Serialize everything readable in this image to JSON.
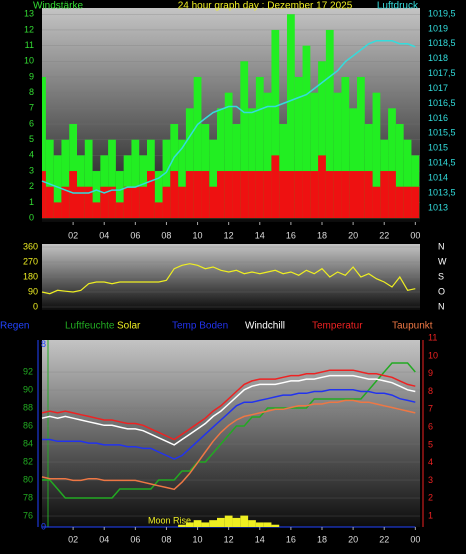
{
  "chart_data": [
    {
      "type": "wind",
      "title": "24 hour graph day : Dezember 17 2025",
      "ylabel": "Windstärke",
      "y2label": "Luftdruck",
      "x": [
        0,
        0.5,
        1,
        1.5,
        2,
        2.5,
        3,
        3.5,
        4,
        4.5,
        5,
        5.5,
        6,
        6.5,
        7,
        7.5,
        8,
        8.5,
        9,
        9.5,
        10,
        10.5,
        11,
        11.5,
        12,
        12.5,
        13,
        13.5,
        14,
        14.5,
        15,
        15.5,
        16,
        16.5,
        17,
        17.5,
        18,
        18.5,
        19,
        19.5,
        20,
        20.5,
        21,
        21.5,
        22,
        22.5,
        23,
        23.5,
        24
      ],
      "xlim": [
        0,
        24.3
      ],
      "xticks": [
        {
          "value": 2,
          "label": "02"
        },
        {
          "value": 4,
          "label": "04"
        },
        {
          "value": 6,
          "label": "06"
        },
        {
          "value": 8,
          "label": "08"
        },
        10,
        12,
        14,
        16,
        18,
        20,
        22,
        {
          "value": 24,
          "label": "00"
        }
      ],
      "ylim": [
        -0.25,
        13.4
      ],
      "yticks": [
        0,
        1,
        2,
        3,
        4,
        5,
        6,
        7,
        8,
        9,
        10,
        11,
        12,
        13
      ],
      "y2lim": [
        1012.53,
        1019.7
      ],
      "y2ticks": [
        1013,
        {
          "value": 1013.5,
          "label": "1013,5"
        },
        1014,
        {
          "value": 1014.5,
          "label": "1014,5"
        },
        1015,
        {
          "value": 1015.5,
          "label": "1015,5"
        },
        1016,
        {
          "value": 1016.5,
          "label": "1016,5"
        },
        1017,
        {
          "value": 1017.5,
          "label": "1017,5"
        },
        1018,
        {
          "value": 1018.5,
          "label": "1018,5"
        },
        1019,
        {
          "value": 1019.5,
          "label": "1019,5"
        }
      ],
      "series": [
        {
          "color": "#22ee22",
          "values": [
            9,
            5,
            4,
            5,
            6,
            4,
            5,
            3,
            4,
            5,
            3,
            4,
            5,
            4,
            5,
            3,
            5,
            6,
            5,
            7,
            9,
            6,
            5,
            7,
            8,
            6,
            10,
            7,
            9,
            8,
            12,
            6,
            13,
            9,
            11,
            8,
            10,
            12,
            8,
            9,
            7,
            9,
            6,
            8,
            5,
            7,
            6,
            5,
            4
          ]
        },
        {
          "color": "#ee1111",
          "values": [
            3,
            2,
            1,
            2,
            3,
            2,
            2,
            1,
            2,
            2,
            1,
            2,
            2,
            2,
            3,
            1,
            2,
            3,
            2,
            3,
            3,
            3,
            2,
            3,
            3,
            3,
            3,
            3,
            3,
            3,
            4,
            3,
            3,
            3,
            3,
            3,
            4,
            3,
            3,
            3,
            3,
            3,
            3,
            2,
            3,
            3,
            2,
            2,
            2
          ]
        },
        {
          "color": "#33dddd",
          "axis": "y2",
          "values": [
            1013.9,
            1013.8,
            1013.7,
            1013.6,
            1013.5,
            1013.5,
            1013.5,
            1013.6,
            1013.5,
            1013.6,
            1013.6,
            1013.7,
            1013.7,
            1013.8,
            1013.9,
            1014.0,
            1014.2,
            1014.7,
            1015.0,
            1015.4,
            1015.8,
            1016.0,
            1016.2,
            1016.3,
            1016.4,
            1016.4,
            1016.2,
            1016.2,
            1016.3,
            1016.4,
            1016.4,
            1016.5,
            1016.6,
            1016.7,
            1016.8,
            1017.0,
            1017.2,
            1017.4,
            1017.6,
            1017.9,
            1018.1,
            1018.3,
            1018.5,
            1018.6,
            1018.6,
            1018.6,
            1018.5,
            1018.5,
            1018.4
          ]
        }
      ]
    },
    {
      "type": "direction",
      "x": [
        0,
        0.5,
        1,
        1.5,
        2,
        2.5,
        3,
        3.5,
        4,
        4.5,
        5,
        5.5,
        6,
        6.5,
        7,
        7.5,
        8,
        8.5,
        9,
        9.5,
        10,
        10.5,
        11,
        11.5,
        12,
        12.5,
        13,
        13.5,
        14,
        14.5,
        15,
        15.5,
        16,
        16.5,
        17,
        17.5,
        18,
        18.5,
        19,
        19.5,
        20,
        20.5,
        21,
        21.5,
        22,
        22.5,
        23,
        23.5,
        24
      ],
      "xlim": [
        0,
        24.3
      ],
      "ylim": [
        -18,
        378
      ],
      "yticks": [
        0,
        90,
        180,
        270,
        360
      ],
      "y2ticks": [
        {
          "value": 360,
          "label": "N"
        },
        {
          "value": 270,
          "label": "W"
        },
        {
          "value": 180,
          "label": "S"
        },
        {
          "value": 90,
          "label": "O"
        },
        {
          "value": 0,
          "label": "N"
        }
      ],
      "series": [
        {
          "color": "#eeee22",
          "values": [
            90,
            80,
            100,
            95,
            90,
            100,
            140,
            150,
            150,
            140,
            150,
            150,
            150,
            150,
            150,
            150,
            160,
            230,
            250,
            260,
            250,
            230,
            240,
            220,
            210,
            220,
            200,
            210,
            200,
            210,
            220,
            200,
            210,
            190,
            220,
            200,
            230,
            180,
            210,
            190,
            240,
            180,
            200,
            170,
            150,
            120,
            180,
            100,
            110
          ]
        }
      ]
    },
    {
      "type": "weather",
      "annotation": "Moon Rise",
      "x": [
        0,
        0.5,
        1,
        1.5,
        2,
        2.5,
        3,
        3.5,
        4,
        4.5,
        5,
        5.5,
        6,
        6.5,
        7,
        7.5,
        8,
        8.5,
        9,
        9.5,
        10,
        10.5,
        11,
        11.5,
        12,
        12.5,
        13,
        13.5,
        14,
        14.5,
        15,
        15.5,
        16,
        16.5,
        17,
        17.5,
        18,
        18.5,
        19,
        19.5,
        20,
        20.5,
        21,
        21.5,
        22,
        22.5,
        23,
        23.5,
        24
      ],
      "xlim": [
        0,
        24.3
      ],
      "xticks": [
        {
          "value": 2,
          "label": "02"
        },
        {
          "value": 4,
          "label": "04"
        },
        {
          "value": 6,
          "label": "06"
        },
        {
          "value": 8,
          "label": "08"
        },
        10,
        12,
        14,
        16,
        18,
        20,
        22,
        {
          "value": 24,
          "label": "00"
        }
      ],
      "ylim": [
        74.78,
        95.56
      ],
      "yticks": [
        76,
        78,
        80,
        82,
        84,
        86,
        88,
        90,
        92
      ],
      "y2lim": [
        0.38,
        10.9
      ],
      "y2ticks": [
        1,
        2,
        3,
        4,
        5,
        6,
        7,
        8,
        9,
        10,
        11
      ],
      "y3lim": [
        0,
        8.2
      ],
      "y3ticks": [
        0,
        8
      ],
      "series": [
        {
          "name": "Regen",
          "color": "#2244ff",
          "axis": "y3",
          "values": [
            0,
            0,
            0,
            0,
            0,
            0,
            0,
            0,
            0,
            0,
            0,
            0,
            0,
            0,
            0,
            0,
            0,
            0,
            0,
            0,
            0,
            0,
            0,
            0,
            0,
            0,
            0,
            0,
            0,
            0,
            0,
            0,
            0,
            0,
            0,
            0,
            0,
            0,
            0,
            0,
            0,
            0,
            0,
            0,
            0,
            0,
            0,
            0,
            0
          ]
        },
        {
          "name": "Luftfeuchte",
          "color": "#22aa22",
          "values": [
            80,
            80,
            79,
            78,
            78,
            78,
            78,
            78,
            78,
            78,
            79,
            79,
            79,
            79,
            79,
            80,
            80,
            80,
            81,
            81,
            82,
            82,
            83,
            84,
            85,
            86,
            86,
            87,
            87,
            88,
            88,
            88,
            88,
            88,
            88,
            89,
            89,
            89,
            89,
            89,
            89,
            89,
            90,
            91,
            92,
            93,
            93,
            93,
            92
          ]
        },
        {
          "name": "Solar",
          "color": "#eeee22",
          "axis": "y3",
          "values": [
            0,
            0,
            0,
            0,
            0,
            0,
            0,
            0,
            0,
            0,
            0,
            0,
            0,
            0,
            0,
            0,
            0,
            0,
            0.1,
            0.2,
            0.3,
            0.2,
            0.3,
            0.4,
            0.5,
            0.4,
            0.5,
            0.3,
            0.2,
            0.2,
            0.1,
            0,
            0,
            0,
            0,
            0,
            0,
            0,
            0,
            0,
            0,
            0,
            0,
            0,
            0,
            0,
            0,
            0,
            0
          ]
        },
        {
          "name": "Temp Boden",
          "color": "#2233ee",
          "axis": "y2",
          "values": [
            5.3,
            5.3,
            5.2,
            5.2,
            5.2,
            5.2,
            5.1,
            5.1,
            5.0,
            5.0,
            5.0,
            4.9,
            4.9,
            4.8,
            4.8,
            4.6,
            4.4,
            4.2,
            4.4,
            4.8,
            5.2,
            5.6,
            6.0,
            6.4,
            6.8,
            7.2,
            7.4,
            7.4,
            7.5,
            7.6,
            7.7,
            7.8,
            7.8,
            7.9,
            7.9,
            8.0,
            8.0,
            8.1,
            8.1,
            8.1,
            8.1,
            8.0,
            8.0,
            7.9,
            7.9,
            7.8,
            7.6,
            7.5,
            7.4
          ]
        },
        {
          "name": "Windchill",
          "color": "#ffffff",
          "axis": "y2",
          "values": [
            6.5,
            6.6,
            6.5,
            6.6,
            6.5,
            6.4,
            6.3,
            6.2,
            6.1,
            6.1,
            6.0,
            5.9,
            5.9,
            5.8,
            5.6,
            5.4,
            5.2,
            5.0,
            5.3,
            5.6,
            5.9,
            6.2,
            6.6,
            6.9,
            7.3,
            7.7,
            8.1,
            8.3,
            8.4,
            8.4,
            8.4,
            8.5,
            8.6,
            8.6,
            8.7,
            8.7,
            8.8,
            8.9,
            8.9,
            8.9,
            8.9,
            8.8,
            8.7,
            8.7,
            8.6,
            8.5,
            8.3,
            8.1,
            8.0
          ]
        },
        {
          "name": "Temperatur",
          "color": "#ee2222",
          "axis": "y2",
          "values": [
            6.8,
            6.9,
            6.8,
            6.9,
            6.8,
            6.7,
            6.6,
            6.5,
            6.4,
            6.4,
            6.3,
            6.2,
            6.2,
            6.1,
            5.9,
            5.7,
            5.5,
            5.3,
            5.6,
            5.9,
            6.2,
            6.5,
            6.9,
            7.2,
            7.6,
            8.0,
            8.4,
            8.6,
            8.7,
            8.7,
            8.7,
            8.8,
            8.9,
            8.9,
            9.0,
            9.0,
            9.1,
            9.2,
            9.2,
            9.2,
            9.2,
            9.1,
            9.0,
            9.0,
            8.9,
            8.8,
            8.6,
            8.4,
            8.3
          ]
        },
        {
          "name": "Taupunkt",
          "color": "#ee7744",
          "axis": "y2",
          "values": [
            3.2,
            3.1,
            3.1,
            3.1,
            3.0,
            3.0,
            3.1,
            3.1,
            3.0,
            3.0,
            3.0,
            3.0,
            3.0,
            2.9,
            2.8,
            2.7,
            2.6,
            2.5,
            2.9,
            3.4,
            4.0,
            4.6,
            5.2,
            5.7,
            6.1,
            6.4,
            6.6,
            6.7,
            6.8,
            6.9,
            7.0,
            7.0,
            7.1,
            7.2,
            7.2,
            7.3,
            7.3,
            7.4,
            7.4,
            7.5,
            7.5,
            7.4,
            7.4,
            7.3,
            7.2,
            7.1,
            7.0,
            6.9,
            6.8
          ]
        }
      ]
    }
  ]
}
